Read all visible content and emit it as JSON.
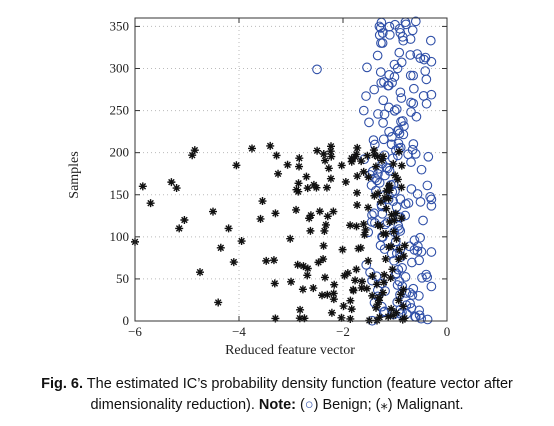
{
  "chart_data": {
    "type": "scatter",
    "title": "",
    "xlabel": "Reduced feature vector",
    "ylabel": "Samples",
    "xlim": [
      -6,
      0
    ],
    "ylim": [
      0,
      360
    ],
    "xticks": [
      -6,
      -4,
      -2,
      0
    ],
    "yticks": [
      0,
      50,
      100,
      150,
      200,
      250,
      300,
      350
    ],
    "xtick_labels": [
      "−6",
      "−4",
      "−2",
      "0"
    ],
    "ytick_labels": [
      "0",
      "50",
      "100",
      "150",
      "200",
      "250",
      "300",
      "350"
    ],
    "grid": "dotted",
    "series": [
      {
        "name": "Benign",
        "marker": "circle",
        "color": "#3050a8",
        "generator": {
          "count": 200,
          "x_range": [
            -1.7,
            -0.3
          ],
          "x_mode": -0.9,
          "y_range": [
            0,
            358
          ]
        },
        "points": [
          {
            "x": -2.5,
            "y": 299
          },
          {
            "x": -1.0,
            "y": 352
          },
          {
            "x": -0.8,
            "y": 355
          },
          {
            "x": -0.6,
            "y": 356
          },
          {
            "x": -1.3,
            "y": 350
          },
          {
            "x": -1.1,
            "y": 340
          },
          {
            "x": -0.7,
            "y": 335
          },
          {
            "x": -1.5,
            "y": 236
          },
          {
            "x": -1.6,
            "y": 250
          },
          {
            "x": -1.4,
            "y": 275
          }
        ]
      },
      {
        "name": "Malignant",
        "marker": "star",
        "color": "#111111",
        "generator": {
          "count": 160,
          "x_range": [
            -3.8,
            -0.8
          ],
          "y_range": [
            0,
            210
          ]
        },
        "points": [
          {
            "x": -6.0,
            "y": 94
          },
          {
            "x": -5.85,
            "y": 160
          },
          {
            "x": -5.7,
            "y": 140
          },
          {
            "x": -5.3,
            "y": 165
          },
          {
            "x": -5.2,
            "y": 158
          },
          {
            "x": -5.15,
            "y": 110
          },
          {
            "x": -5.05,
            "y": 120
          },
          {
            "x": -4.9,
            "y": 197
          },
          {
            "x": -4.85,
            "y": 203
          },
          {
            "x": -4.75,
            "y": 58
          },
          {
            "x": -4.5,
            "y": 130
          },
          {
            "x": -4.4,
            "y": 22
          },
          {
            "x": -4.35,
            "y": 87
          },
          {
            "x": -4.2,
            "y": 110
          },
          {
            "x": -4.1,
            "y": 70
          },
          {
            "x": -4.05,
            "y": 185
          },
          {
            "x": -3.95,
            "y": 95
          },
          {
            "x": -3.75,
            "y": 205
          },
          {
            "x": -3.4,
            "y": 208
          },
          {
            "x": -3.3,
            "y": 3
          }
        ]
      }
    ],
    "legend": "caption"
  },
  "caption": {
    "fig_label": "Fig. 6.",
    "text_1": " The estimated IC’s probability density function (feature vector after",
    "text_2": "dimensionality reduction). ",
    "note_label": "Note:",
    "benign_open": " (",
    "benign_symbol": "○",
    "benign_close": ") Benign; (",
    "malignant_symbol": "⁎",
    "malignant_close": ") Malignant."
  }
}
